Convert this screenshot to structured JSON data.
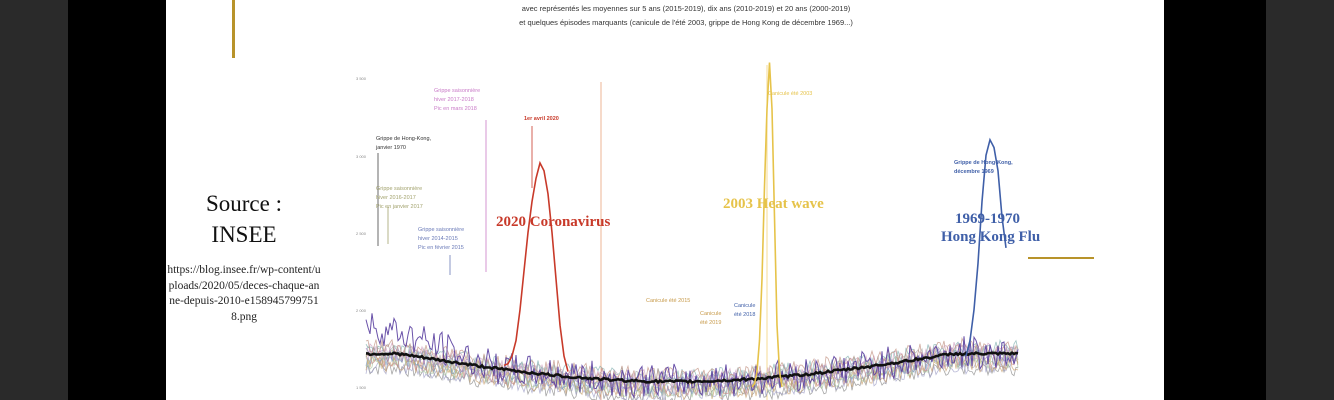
{
  "source": {
    "title_line1": "Source :",
    "title_line2": "INSEE",
    "url": "https://blog.insee.fr/wp-content/uploads/2020/05/deces-chaque-anne-depuis-2010-e1589457997518.png"
  },
  "colors": {
    "gold": "#b8932a",
    "covid": "#c83a2a",
    "heatwave": "#e6c34a",
    "hongkong": "#3f5fa8",
    "background_trend": "#111111"
  },
  "chart_data": {
    "type": "line",
    "subtitle_line1": "avec représentés les moyennes sur 5 ans (2015-2019), dix ans (2010-2019) et 20 ans (2000-2019)",
    "subtitle_line2": "et  quelques épisodes marquants (canicule de l'été 2003, grippe de Hong Kong  de décembre 1969...)",
    "xlabel": "",
    "ylabel": "",
    "y_tick_labels": [
      "3 500",
      "3 000",
      "2 500",
      "2 000",
      "1 500"
    ],
    "grid": false,
    "peaks": [
      {
        "name": "covid",
        "values": [
          1640,
          1650,
          1700,
          1800,
          2000,
          2250,
          2500,
          2700,
          2850,
          2950,
          2900,
          2750,
          2500,
          2200,
          1900,
          1700,
          1600
        ]
      },
      {
        "name": "heatwave",
        "values": [
          1500,
          1520,
          1600,
          1800,
          2200,
          2800,
          3300,
          3600,
          3300,
          2600,
          1900,
          1600,
          1500
        ]
      },
      {
        "name": "hongkong",
        "values": [
          1700,
          1800,
          2000,
          2300,
          2700,
          3000,
          3100,
          3050,
          2900,
          2600,
          2400
        ]
      }
    ],
    "annotations": {
      "flu_1970": [
        "Grippe de Hong-Kong,",
        "janvier 1970"
      ],
      "flu_2017": [
        "Grippe saisonnière",
        "hiver 2016-2017",
        "Pic en janvier 2017"
      ],
      "flu_2015": [
        "Grippe saisonnière",
        "hiver 2014-2015",
        "Pic en février 2015"
      ],
      "flu_2018": [
        "Grippe saisonnière",
        "hiver 2017-2018",
        "Pic en mars 2018"
      ],
      "april_2020": "1er avril 2020",
      "heat_2003": "Canicule été 2003",
      "heat_2015": "Canicule été 2015",
      "heat_2019": [
        "Canicule",
        "été 2019"
      ],
      "heat_2018": [
        "Canicule",
        "été 2018"
      ],
      "hk_1969": [
        "Grippe de Hong-Kong,",
        "décembre 1969"
      ]
    },
    "overlays": {
      "covid": "2020 Coronavirus",
      "heatwave": "2003 Heat wave",
      "hongkong_line1": "1969-1970",
      "hongkong_line2": "Hong Kong Flu"
    }
  }
}
